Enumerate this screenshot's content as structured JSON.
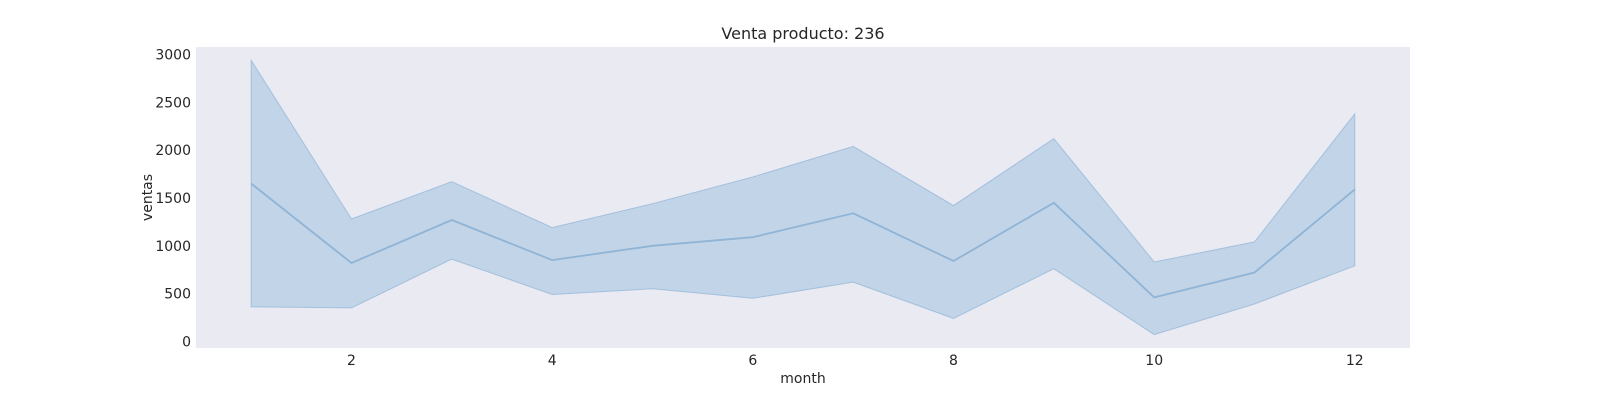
{
  "chart_data": {
    "type": "line",
    "title": "Venta producto: 236",
    "xlabel": "month",
    "ylabel": "ventas",
    "x": [
      1,
      2,
      3,
      4,
      5,
      6,
      7,
      8,
      9,
      10,
      11,
      12
    ],
    "series": [
      {
        "values": [
          1650,
          820,
          1270,
          850,
          1000,
          1090,
          1340,
          840,
          1450,
          460,
          720,
          1590
        ],
        "ci_lower": [
          360,
          350,
          860,
          490,
          550,
          450,
          620,
          240,
          760,
          70,
          390,
          790
        ],
        "ci_upper": [
          2940,
          1280,
          1670,
          1190,
          1440,
          1720,
          2040,
          1420,
          2120,
          830,
          1040,
          2380
        ]
      }
    ],
    "xticks": [
      2,
      4,
      6,
      8,
      10,
      12
    ],
    "yticks": [
      0,
      500,
      1000,
      1500,
      2000,
      2500,
      3000
    ],
    "xlim": [
      0.45,
      12.55
    ],
    "ylim": [
      -70,
      3080
    ],
    "grid": false,
    "colors": {
      "plot_background": "#eaeaf2",
      "line": "#8fb4d6",
      "band": "#a7c4e0"
    }
  }
}
